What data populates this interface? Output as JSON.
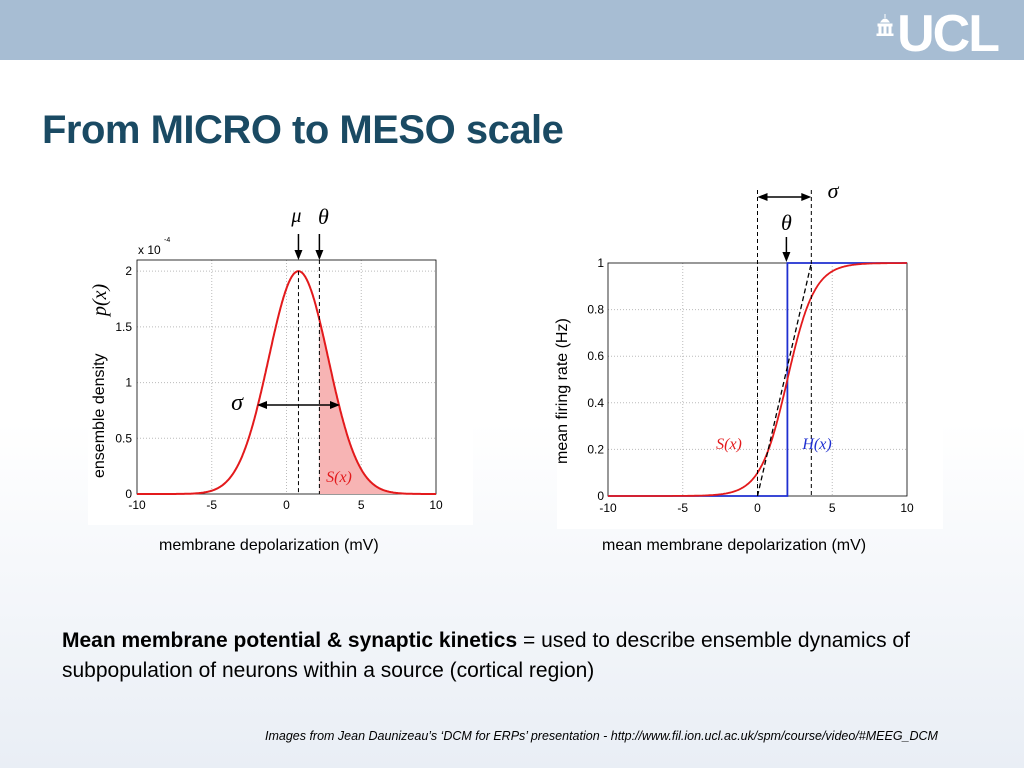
{
  "slide": {
    "title": "From MICRO to MESO scale",
    "logo_text": "UCL",
    "body_bold": "Mean membrane potential & synaptic kinetics",
    "body_rest": " = used to describe ensemble dynamics of subpopulation of neurons within a source (cortical region)",
    "credit": "Images from Jean Daunizeau’s ‘DCM for ERPs’ presentation - http://www.fil.ion.ucl.ac.uk/spm/course/video/#MEEG_DCM"
  },
  "colors": {
    "accent": "#1a4a63",
    "topbar": "#a7bdd3",
    "curve": "#e31a1c",
    "step": "#1f2fd0",
    "fill": "#f7b4b4"
  },
  "chart_data": [
    {
      "type": "line",
      "xlabel": "membrane depolarization (mV)",
      "ylabel": "ensemble density",
      "ylabel_math": "p(x)",
      "scale_label": "x 10",
      "scale_exp": "-4",
      "xlim": [
        -10,
        10
      ],
      "ylim": [
        0,
        2.1
      ],
      "xticks": [
        "-10",
        "-5",
        "0",
        "5",
        "10"
      ],
      "yticks": [
        "0",
        "0.5",
        "1",
        "1.5",
        "2"
      ],
      "grid": true,
      "mu": 0.8,
      "theta": 2.2,
      "sigma": 2.8,
      "peak": 2.0,
      "annotations": {
        "mu": "μ",
        "theta": "θ",
        "sigma": "σ",
        "shaded": "S(x)"
      }
    },
    {
      "type": "line",
      "xlabel": "mean membrane depolarization (mV)",
      "ylabel": "mean firing rate (Hz)",
      "xlim": [
        -10,
        10
      ],
      "ylim": [
        0,
        1
      ],
      "xticks": [
        "-10",
        "-5",
        "0",
        "5",
        "10"
      ],
      "yticks": [
        "0",
        "0.2",
        "0.4",
        "0.6",
        "0.8",
        "1"
      ],
      "grid": true,
      "theta": 2.0,
      "sigma_left": 0.0,
      "sigma_right": 3.6,
      "annotations": {
        "theta": "θ",
        "sigma": "σ",
        "sx": "S(x)",
        "hx": "H(x)"
      }
    }
  ]
}
